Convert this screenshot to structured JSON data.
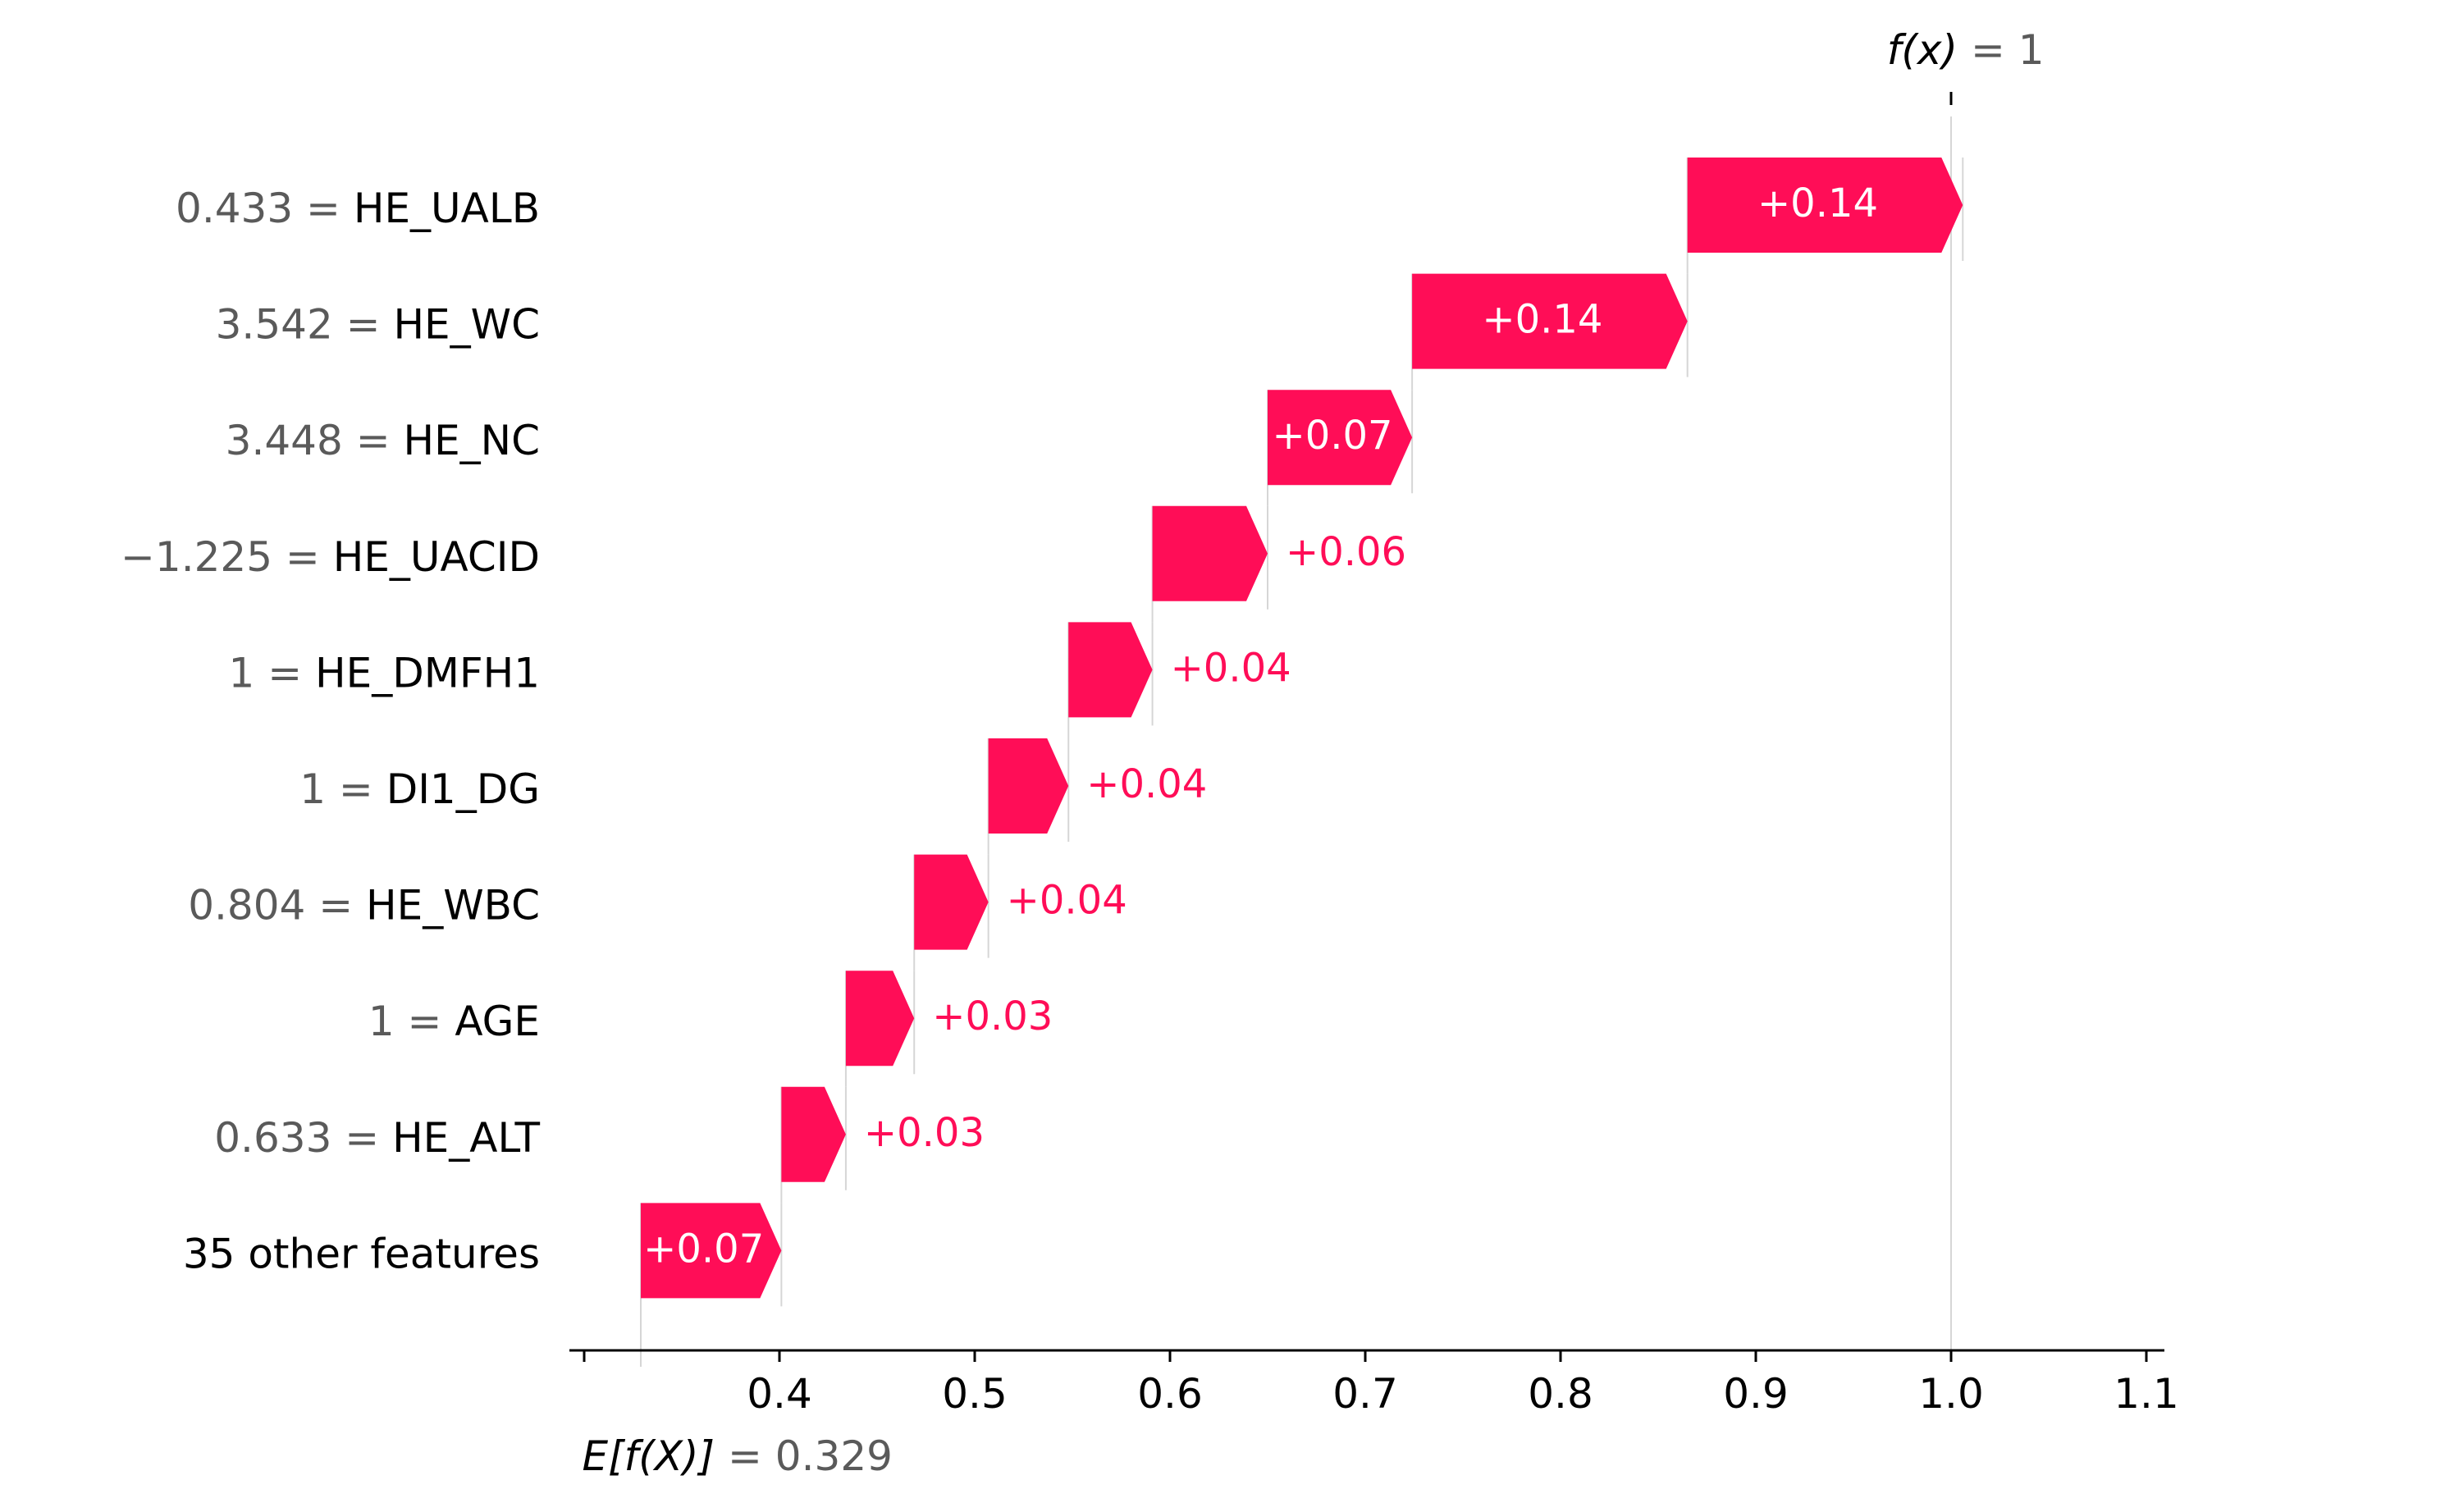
{
  "chart_data": {
    "type": "waterfall",
    "title": "",
    "xlabel": "",
    "ylabel": "",
    "xlim": [
      0.3,
      1.1
    ],
    "x_ticks": [
      "0.4",
      "0.5",
      "0.6",
      "0.7",
      "0.8",
      "0.9",
      "1.0",
      "1.1"
    ],
    "x_tick_values": [
      0.4,
      0.5,
      0.6,
      0.7,
      0.8,
      0.9,
      1.0,
      1.1
    ],
    "base_value": 0.329,
    "base_label_expr": "E[f(X)]",
    "base_label_value": "= 0.329",
    "output_value": 1.0,
    "output_label_expr": "f(x)",
    "output_label_value": "= 1",
    "features": [
      {
        "value": "0.433",
        "name": "HE_UALB",
        "contribution": 0.141,
        "label": "+0.14"
      },
      {
        "value": "3.542",
        "name": "HE_WC",
        "contribution": 0.141,
        "label": "+0.14"
      },
      {
        "value": "3.448",
        "name": "HE_NC",
        "contribution": 0.074,
        "label": "+0.07"
      },
      {
        "value": "−1.225",
        "name": "HE_UACID",
        "contribution": 0.059,
        "label": "+0.06"
      },
      {
        "value": "1",
        "name": "HE_DMFH1",
        "contribution": 0.043,
        "label": "+0.04"
      },
      {
        "value": "1",
        "name": "DI1_DG",
        "contribution": 0.041,
        "label": "+0.04"
      },
      {
        "value": "0.804",
        "name": "HE_WBC",
        "contribution": 0.038,
        "label": "+0.04"
      },
      {
        "value": "1",
        "name": "AGE",
        "contribution": 0.035,
        "label": "+0.03"
      },
      {
        "value": "0.633",
        "name": "HE_ALT",
        "contribution": 0.033,
        "label": "+0.03"
      },
      {
        "value": "",
        "name": "35 other features",
        "contribution": 0.072,
        "label": "+0.07"
      }
    ],
    "colors": {
      "positive": "#ff0d57",
      "value_text": "#5a5a5a",
      "label_text": "#000000",
      "axis": "#000000",
      "guide": "#d6d6d6"
    }
  }
}
